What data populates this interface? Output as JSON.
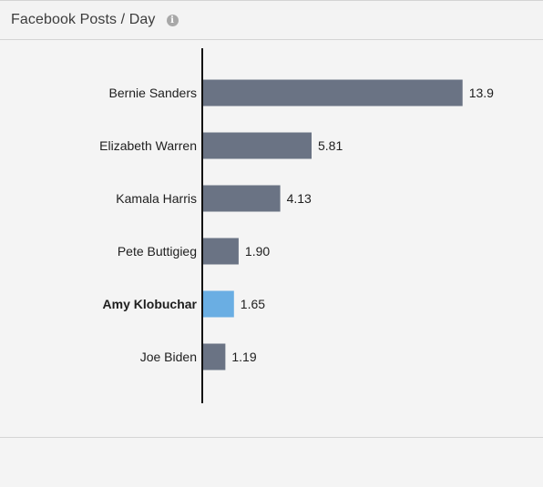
{
  "header": {
    "title": "Facebook Posts / Day",
    "info_icon": "info-circle-icon"
  },
  "colors": {
    "bar_default": "#6a7384",
    "bar_highlight": "#6aaee3",
    "axis": "#111111",
    "label": "#1e1e1e"
  },
  "chart_data": {
    "type": "bar",
    "orientation": "horizontal",
    "title": "Facebook Posts / Day",
    "xlabel": "",
    "ylabel": "",
    "categories": [
      "Bernie Sanders",
      "Elizabeth Warren",
      "Kamala Harris",
      "Pete Buttigieg",
      "Amy Klobuchar",
      "Joe Biden"
    ],
    "values": [
      13.9,
      5.81,
      4.13,
      1.9,
      1.65,
      1.19
    ],
    "value_labels": [
      "13.9",
      "5.81",
      "4.13",
      "1.90",
      "1.65",
      "1.19"
    ],
    "highlighted": "Amy Klobuchar",
    "xlim": [
      0,
      14.5
    ],
    "grid": false,
    "legend": "none"
  }
}
